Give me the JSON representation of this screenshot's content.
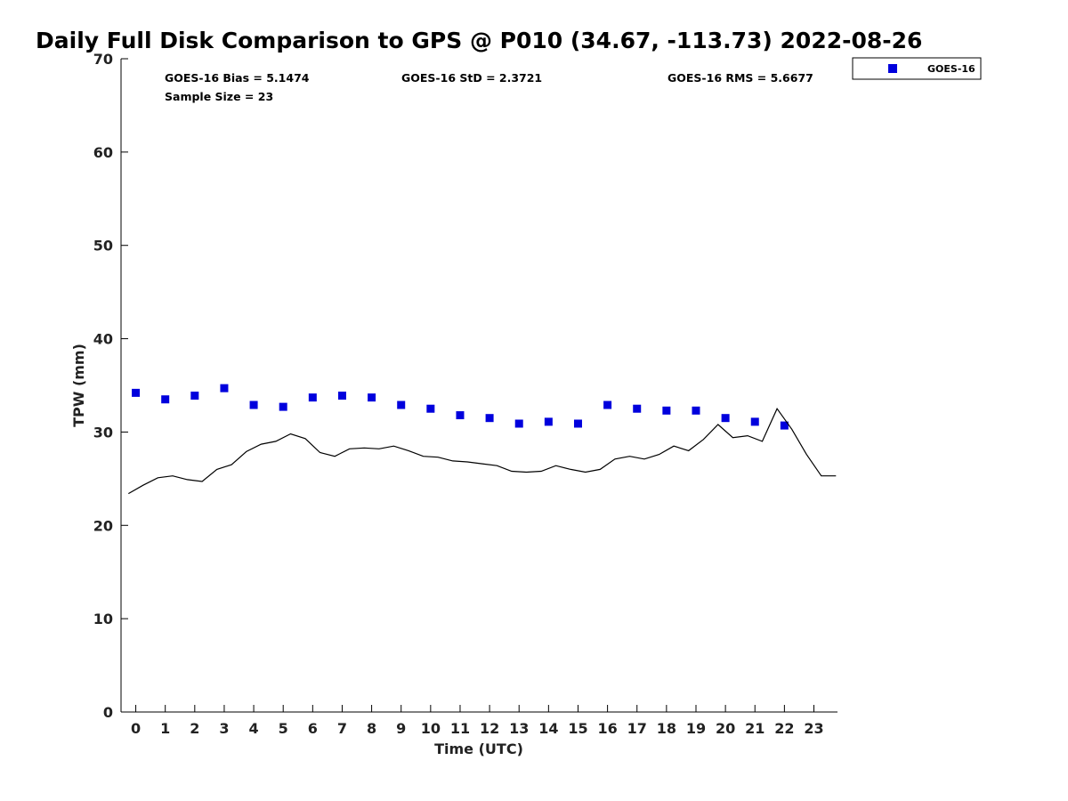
{
  "chart_data": {
    "type": "scatter",
    "title": "Daily Full Disk Comparison to GPS @ P010 (34.67, -113.73) 2022-08-26",
    "xlabel": "Time (UTC)",
    "ylabel": "TPW (mm)",
    "xlim": [
      -0.5,
      23.8
    ],
    "ylim": [
      0,
      70
    ],
    "xticks": [
      0,
      1,
      2,
      3,
      4,
      5,
      6,
      7,
      8,
      9,
      10,
      11,
      12,
      13,
      14,
      15,
      16,
      17,
      18,
      19,
      20,
      21,
      22,
      23
    ],
    "yticks": [
      0,
      10,
      20,
      30,
      40,
      50,
      60,
      70
    ],
    "grid": false,
    "legend_position": "outside-top-right",
    "stats": {
      "bias": "GOES-16 Bias = 5.1474",
      "std": "GOES-16 StD = 2.3721",
      "rms": "GOES-16 RMS = 5.6677",
      "sample": "Sample Size = 23"
    },
    "series": [
      {
        "name": "GOES-16",
        "kind": "scatter",
        "marker": "square",
        "color": "#0000dd",
        "x": [
          0,
          1,
          2,
          3,
          4,
          5,
          6,
          7,
          8,
          9,
          10,
          11,
          12,
          13,
          14,
          15,
          16,
          17,
          18,
          19,
          20,
          21,
          22
        ],
        "y": [
          34.2,
          33.5,
          33.9,
          34.7,
          32.9,
          32.7,
          33.7,
          33.9,
          33.7,
          32.9,
          32.5,
          31.8,
          31.5,
          30.9,
          31.1,
          30.9,
          32.9,
          32.5,
          32.3,
          32.3,
          31.5,
          31.1,
          30.7
        ]
      },
      {
        "kind": "line",
        "color": "#000000",
        "x": [
          -0.25,
          0.25,
          0.75,
          1.25,
          1.75,
          2.25,
          2.75,
          3.25,
          3.75,
          4.25,
          4.75,
          5.25,
          5.75,
          6.25,
          6.75,
          7.25,
          7.75,
          8.25,
          8.75,
          9.25,
          9.75,
          10.25,
          10.75,
          11.25,
          11.75,
          12.25,
          12.75,
          13.25,
          13.75,
          14.25,
          14.75,
          15.25,
          15.75,
          16.25,
          16.75,
          17.25,
          17.75,
          18.25,
          18.75,
          19.25,
          19.75,
          20.25,
          20.75,
          21.25,
          21.75,
          22.25,
          22.75,
          23.25,
          23.75
        ],
        "y": [
          23.4,
          24.3,
          25.1,
          25.3,
          24.9,
          24.7,
          26.0,
          26.5,
          27.9,
          28.7,
          29.0,
          29.8,
          29.3,
          27.8,
          27.4,
          28.2,
          28.3,
          28.2,
          28.5,
          28.0,
          27.4,
          27.3,
          26.9,
          26.8,
          26.6,
          26.4,
          25.8,
          25.7,
          25.8,
          26.4,
          26.0,
          25.7,
          26.0,
          27.1,
          27.4,
          27.1,
          27.6,
          28.5,
          28.0,
          29.2,
          30.8,
          29.4,
          29.6,
          29.0,
          32.5,
          30.3,
          27.6,
          25.3,
          25.3
        ]
      }
    ]
  }
}
